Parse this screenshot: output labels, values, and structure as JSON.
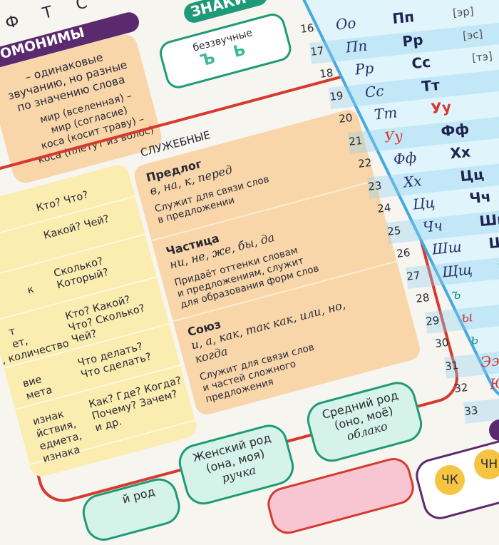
{
  "top_letters": "Ф Т С",
  "homonyms": {
    "title": "ОМОНИМЫ",
    "def": [
      "– одинаковые",
      "звучанию, но разные",
      "по значению слова"
    ],
    "examples": [
      "мир (вселенная) –",
      "мир (согласие)",
      "коса (косит траву) –",
      "коса (плетут из волос)"
    ]
  },
  "signs": {
    "title": "ЗНАКИ",
    "label": "беззвучные",
    "letters": "Ъ Ь"
  },
  "questions": [
    [
      "Кто? Что?"
    ],
    [
      "Какой? Чей?"
    ],
    [
      "Сколько?",
      "Который?"
    ],
    [
      "Кто? Какой?",
      "Что? Сколько?",
      "Чей?"
    ],
    [
      "Что делать?",
      "Что сделать?"
    ],
    [
      "Как? Где? Когда?",
      "Почему? Зачем?",
      "и др."
    ]
  ],
  "left_fragments": [
    "к",
    "т",
    "ет,",
    ", количество",
    "вие",
    "мета",
    "изнак",
    "йствия,",
    "едмета,",
    "изнака"
  ],
  "service": {
    "title": "СЛУЖЕБНЫЕ",
    "items": [
      {
        "name": "Предлог",
        "examples": "в, на, к, перед",
        "desc": [
          "Служит для связи слов",
          "в предложении"
        ]
      },
      {
        "name": "Частица",
        "examples": "ни, не, же, бы, да",
        "desc": [
          "Придаёт оттенки словам",
          "и предложениям, служит",
          "для образования форм слов"
        ]
      },
      {
        "name": "Союз",
        "examples": "и, а, как, так как, или, но, когда",
        "desc": [
          "Служит для связи слов",
          "и частей сложного",
          "предложения"
        ]
      }
    ]
  },
  "alphabet": [
    {
      "n": "16",
      "c": "Оо",
      "p": "Пп",
      "t": "[эр]"
    },
    {
      "n": "17",
      "c": "Пп",
      "p": "Рр",
      "t": "[эс]"
    },
    {
      "n": "18",
      "c": "Рр",
      "p": "Сс",
      "t": "[тэ]"
    },
    {
      "n": "19",
      "c": "Сс",
      "p": "Тт",
      "t": ""
    },
    {
      "n": "20",
      "c": "Тт",
      "p": "Уу",
      "t": ""
    },
    {
      "n": "21",
      "c": "Уу",
      "p": "Фф",
      "t": ""
    },
    {
      "n": "22",
      "c": "Фф",
      "p": "Хх",
      "t": ""
    },
    {
      "n": "23",
      "c": "Хх",
      "p": "Цц",
      "t": ""
    },
    {
      "n": "24",
      "c": "Цц",
      "p": "Чч",
      "t": ""
    },
    {
      "n": "25",
      "c": "Чч",
      "p": "Шш",
      "t": ""
    },
    {
      "n": "26",
      "c": "Шш",
      "p": "Щщ",
      "t": ""
    },
    {
      "n": "27",
      "c": "Щщ",
      "p": "ъ",
      "t": ""
    },
    {
      "n": "28",
      "c": "ъ",
      "p": "ы",
      "t": ""
    },
    {
      "n": "29",
      "c": "ы",
      "p": "ь",
      "t": ""
    },
    {
      "n": "30",
      "c": "ь",
      "p": "Ээ",
      "t": ""
    },
    {
      "n": "31",
      "c": "Ээ",
      "p": "Юю",
      "t": ""
    },
    {
      "n": "32",
      "c": "Юю",
      "p": "",
      "t": ""
    },
    {
      "n": "33",
      "c": "",
      "p": "",
      "t": ""
    }
  ],
  "red_letters": [
    "Уу",
    "ы",
    "Ээ",
    "Юю"
  ],
  "green_letters": [
    "ъ",
    "ь"
  ],
  "gender": {
    "neuter": {
      "title": "Средний род",
      "pron": "(оно, моё)",
      "ex": "облако"
    },
    "feminine": {
      "title": "Женский род",
      "pron": "(она, моя)",
      "ex": "ручка"
    },
    "masculine": {
      "title": "й род"
    }
  },
  "combos": [
    "ЧК",
    "ЧН"
  ],
  "colors": {
    "red": "#d63a2f",
    "blue": "#45a9e0",
    "green": "#1f9a78",
    "purple": "#5b2a6e",
    "orange": "#f8d6aa",
    "yellow": "#fbecb0"
  }
}
